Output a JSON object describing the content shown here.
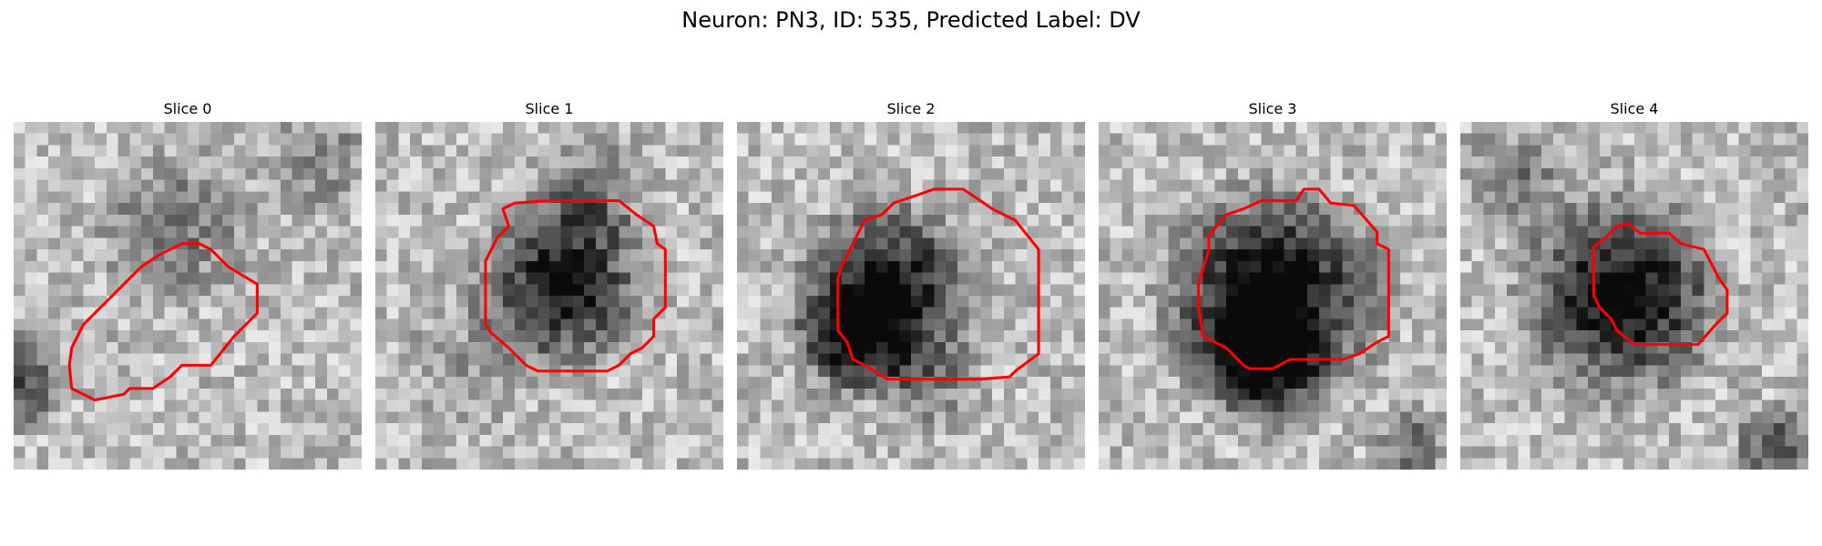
{
  "figure": {
    "title": "Neuron: PN3, ID: 535, Predicted Label: DV"
  },
  "panels": [
    {
      "title": "Slice 0"
    },
    {
      "title": "Slice 1"
    },
    {
      "title": "Slice 2"
    },
    {
      "title": "Slice 3"
    },
    {
      "title": "Slice 4"
    }
  ],
  "style": {
    "contour_color": "#ff0000",
    "colormap": "grayscale",
    "background": "#ffffff"
  }
}
